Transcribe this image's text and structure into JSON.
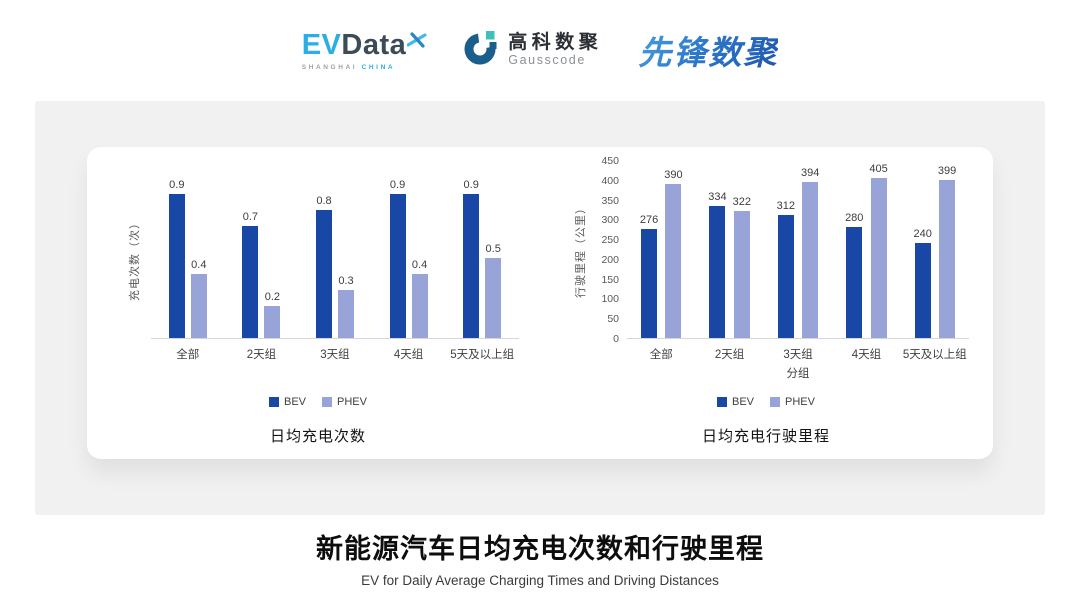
{
  "header": {
    "evdata": {
      "ev": "EV",
      "data": "Data",
      "sub_left": "SHANGHAI ",
      "sub_right": "CHINA"
    },
    "gausscode": {
      "cn": "高科数聚",
      "en": "Gausscode"
    },
    "xianfeng": "先锋数聚"
  },
  "footer": {
    "title": "新能源汽车日均充电次数和行驶里程",
    "subtitle": "EV for Daily Average Charging Times and Driving Distances"
  },
  "colors": {
    "bev": "#1847A6",
    "phev": "#98A4D7",
    "panel_gray": "#F1F1F1",
    "axis_gray": "#D6D6D6",
    "evdata_blue": "#2AAEE4",
    "evdata_dark": "#3D4A57",
    "gausscode_blue": "#1B5E8C",
    "gausscode_teal": "#3FBFBF",
    "xianfeng_blue": "#2E79CC"
  },
  "chart_data": [
    {
      "type": "bar",
      "title": "日均充电次数",
      "ylabel": "充电次数（次）",
      "xlabel": "",
      "categories": [
        "全部",
        "2天组",
        "3天组",
        "4天组",
        "5天及以上组"
      ],
      "series": [
        {
          "name": "BEV",
          "color": "#1847A6",
          "values": [
            0.9,
            0.7,
            0.8,
            0.9,
            0.9
          ],
          "labels": [
            "0.9",
            "0.7",
            "0.8",
            "0.9",
            "0.9"
          ]
        },
        {
          "name": "PHEV",
          "color": "#98A4D7",
          "values": [
            0.4,
            0.2,
            0.3,
            0.4,
            0.5
          ],
          "labels": [
            "0.4",
            "0.2",
            "0.3",
            "0.4",
            "0.5"
          ]
        }
      ],
      "ylim": [
        0,
        1.0
      ],
      "yticks": [],
      "grid": false,
      "legend_position": "bottom"
    },
    {
      "type": "bar",
      "title": "日均充电行驶里程",
      "ylabel": "行驶里程（公里）",
      "xlabel": "分组",
      "categories": [
        "全部",
        "2天组",
        "3天组",
        "4天组",
        "5天及以上组"
      ],
      "series": [
        {
          "name": "BEV",
          "color": "#1847A6",
          "values": [
            276,
            334,
            312,
            280,
            240
          ],
          "labels": [
            "276",
            "334",
            "312",
            "280",
            "240"
          ]
        },
        {
          "name": "PHEV",
          "color": "#98A4D7",
          "values": [
            390,
            322,
            394,
            405,
            399
          ],
          "labels": [
            "390",
            "322",
            "394",
            "405",
            "399"
          ]
        }
      ],
      "ylim": [
        0,
        450
      ],
      "yticks": [
        0,
        50,
        100,
        150,
        200,
        250,
        300,
        350,
        400,
        450
      ],
      "grid": false,
      "legend_position": "bottom"
    }
  ]
}
